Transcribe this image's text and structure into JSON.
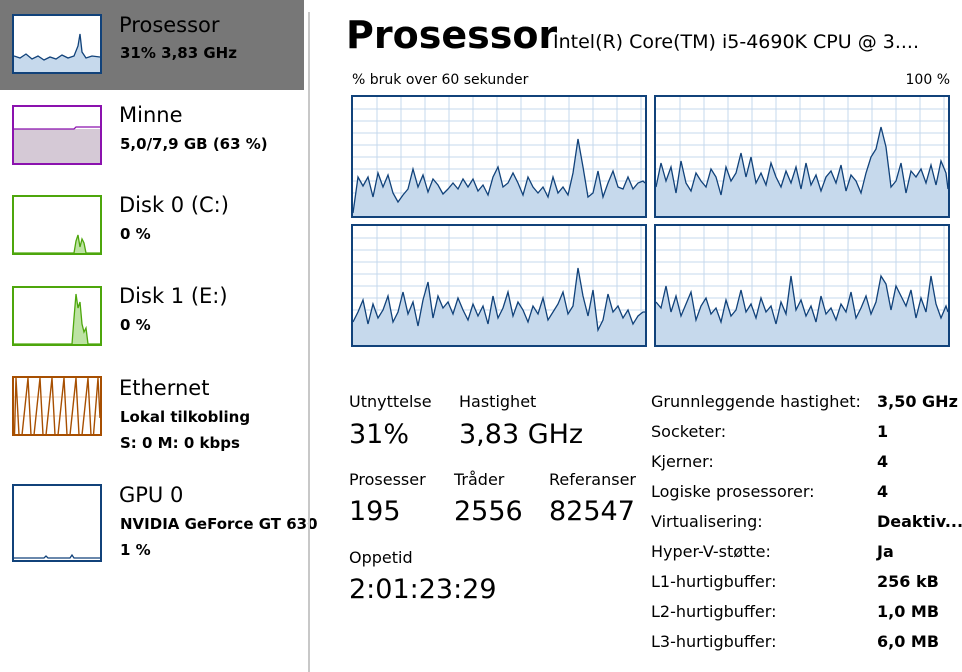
{
  "sidebar": {
    "items": [
      {
        "title": "Prosessor",
        "line1": "31% 3,83 GHz",
        "line2": "",
        "color": "#11427a"
      },
      {
        "title": "Minne",
        "line1": "5,0/7,9 GB (63 %)",
        "line2": "",
        "color": "#8b12ae"
      },
      {
        "title": "Disk 0 (C:)",
        "line1": "0 %",
        "line2": "",
        "color": "#4da60c"
      },
      {
        "title": "Disk 1 (E:)",
        "line1": "0 %",
        "line2": "",
        "color": "#4da60c"
      },
      {
        "title": "Ethernet",
        "line1": "Lokal tilkobling",
        "line2": "S: 0 M: 0 kbps",
        "color": "#a74f01"
      },
      {
        "title": "GPU 0",
        "line1": "NVIDIA GeForce GT 630",
        "line2": "1 %",
        "color": "#11427a"
      }
    ]
  },
  "main": {
    "title": "Prosessor",
    "cpu_name": "Intel(R) Core(TM) i5-4690K CPU @ 3....",
    "graph_label_left": "% bruk over 60 sekunder",
    "graph_label_right": "100 %",
    "graph_color": "#11427a",
    "graph_fill": "#c6d9ec",
    "grid_color": "#c6d9ec"
  },
  "stats": {
    "utilization_label": "Utnyttelse",
    "utilization_value": "31%",
    "speed_label": "Hastighet",
    "speed_value": "3,83 GHz",
    "processes_label": "Prosesser",
    "processes_value": "195",
    "threads_label": "Tråder",
    "threads_value": "2556",
    "handles_label": "Referanser",
    "handles_value": "82547",
    "uptime_label": "Oppetid",
    "uptime_value": "2:01:23:29"
  },
  "info": [
    {
      "label": "Grunnleggende hastighet:",
      "value": "3,50 GHz"
    },
    {
      "label": "Socketer:",
      "value": "1"
    },
    {
      "label": "Kjerner:",
      "value": "4"
    },
    {
      "label": "Logiske prosessorer:",
      "value": "4"
    },
    {
      "label": "Virtualisering:",
      "value": "Deaktiv..."
    },
    {
      "label": "Hyper-V-støtte:",
      "value": "Ja"
    },
    {
      "label": "L1-hurtigbuffer:",
      "value": "256 kB"
    },
    {
      "label": "L2-hurtigbuffer:",
      "value": "1,0 MB"
    },
    {
      "label": "L3-hurtigbuffer:",
      "value": "6,0 MB"
    }
  ]
}
